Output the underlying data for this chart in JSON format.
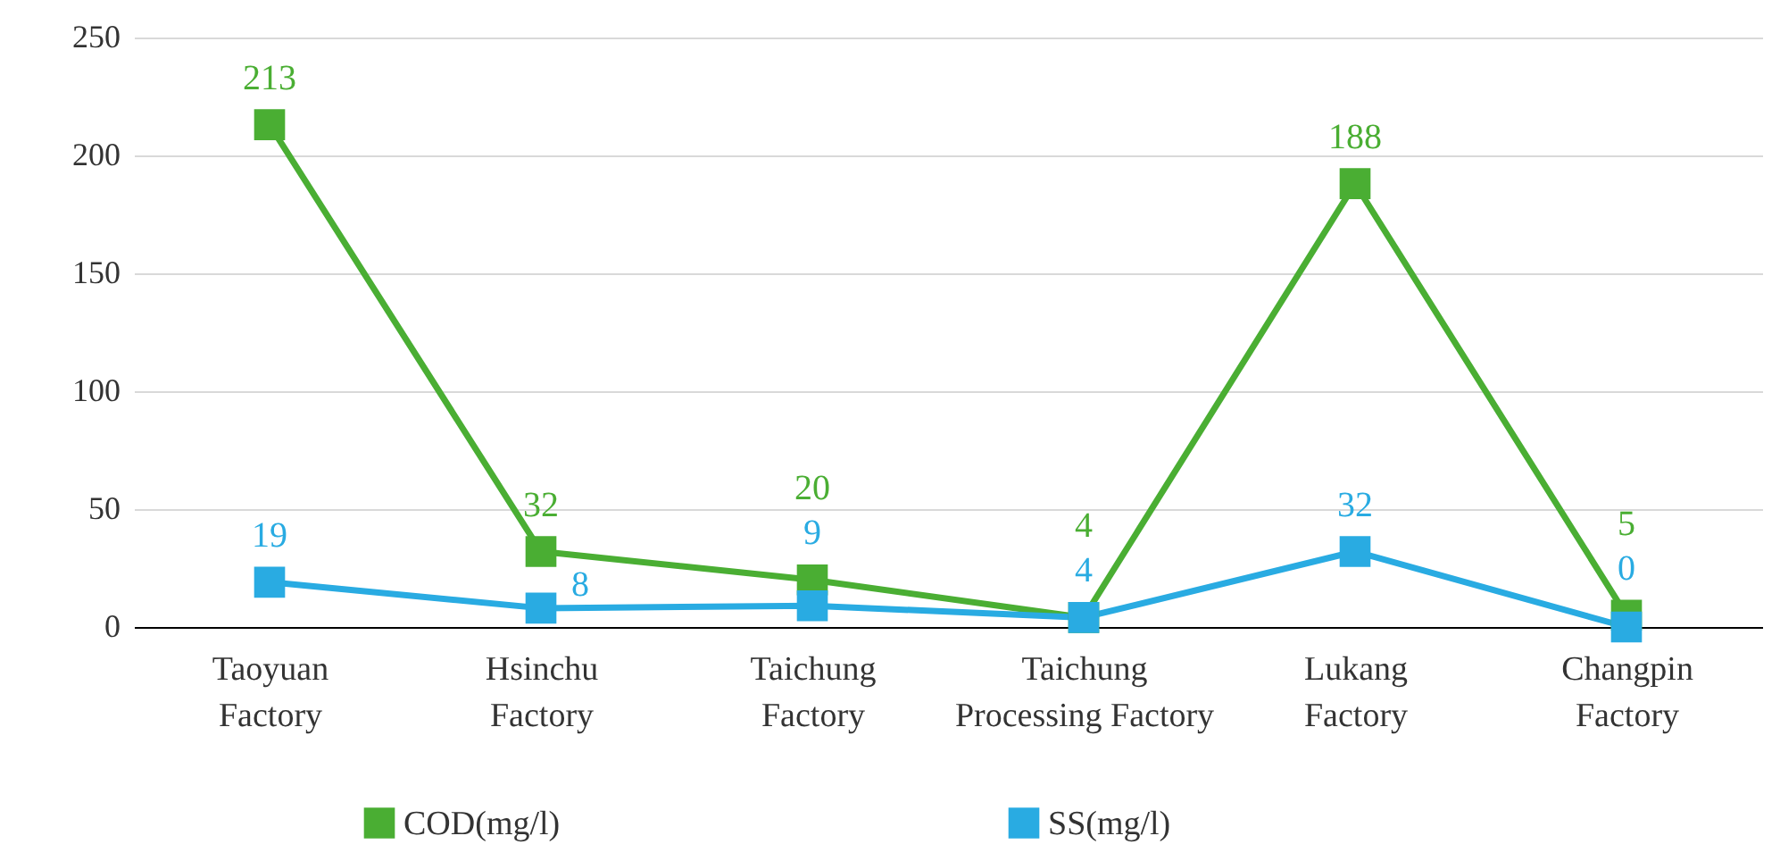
{
  "chart_data": {
    "type": "line",
    "categories": [
      "Taoyuan Factory",
      "Hsinchu Factory",
      "Taichung Factory",
      "Taichung Processing Factory",
      "Lukang Factory",
      "Changpin Factory"
    ],
    "series": [
      {
        "name": "COD(mg/l)",
        "color": "#4aae33",
        "values": [
          213,
          32,
          20,
          4,
          188,
          5
        ]
      },
      {
        "name": "SS(mg/l)",
        "color": "#29abe2",
        "values": [
          19,
          8,
          9,
          4,
          32,
          0
        ]
      }
    ],
    "ylim": [
      0,
      250
    ],
    "yticks": [
      0,
      50,
      100,
      150,
      200,
      250
    ],
    "grid": "y",
    "legend": "bottom",
    "marker": "square",
    "line_style": "solid",
    "data_labels": true
  }
}
